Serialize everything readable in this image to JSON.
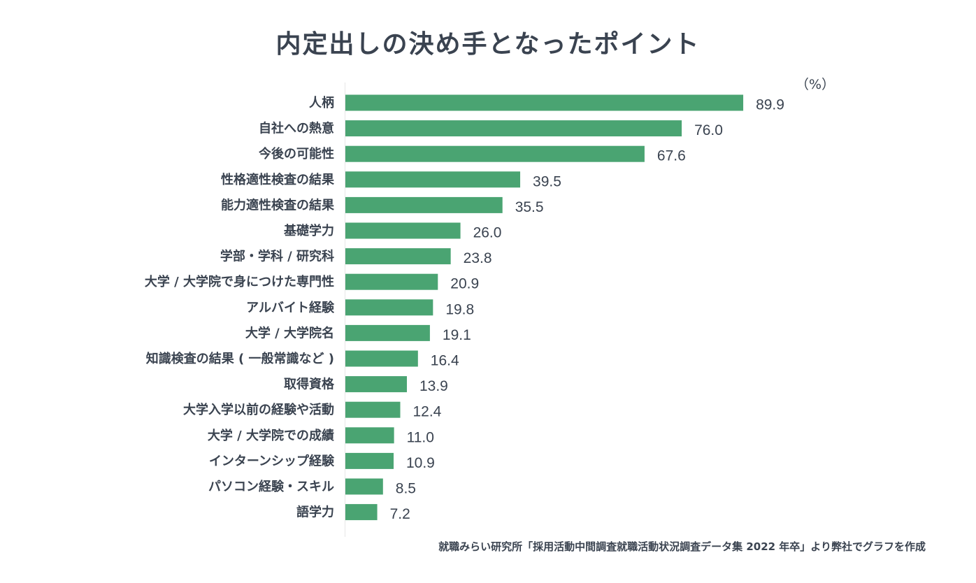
{
  "title": "内定出しの決め手となったポイント",
  "unit": "（%）",
  "source": "就職みらい研究所「採用活動中間調査就職活動状況調査データ集 2022 年卒」より弊社でグラフを作成",
  "colors": {
    "bar": "#4aa472",
    "text": "#3a4350",
    "axis": "#e6e6e6"
  },
  "chart_data": {
    "type": "bar",
    "orientation": "horizontal",
    "title": "内定出しの決め手となったポイント",
    "unit": "%",
    "categories": [
      "人柄",
      "自社への熱意",
      "今後の可能性",
      "性格適性検査の結果",
      "能力適性検査の結果",
      "基礎学力",
      "学部・学科 / 研究科",
      "大学 / 大学院で身につけた専門性",
      "アルバイト経験",
      "大学 / 大学院名",
      "知識検査の結果 ( 一般常識など )",
      "取得資格",
      "大学入学以前の経験や活動",
      "大学 / 大学院での成績",
      "インターンシップ経験",
      "パソコン経験・スキル",
      "語学力"
    ],
    "values": [
      89.9,
      76.0,
      67.6,
      39.5,
      35.5,
      26.0,
      23.8,
      20.9,
      19.8,
      19.1,
      16.4,
      13.9,
      12.4,
      11.0,
      10.9,
      8.5,
      7.2
    ],
    "value_labels": [
      "89.9",
      "76.0",
      "67.6",
      "39.5",
      "35.5",
      "26.0",
      "23.8",
      "20.9",
      "19.8",
      "19.1",
      "16.4",
      "13.9",
      "12.4",
      "11.0",
      "10.9",
      "8.5",
      "7.2"
    ],
    "xlim": [
      0,
      100
    ],
    "grid": false,
    "legend": "none"
  }
}
